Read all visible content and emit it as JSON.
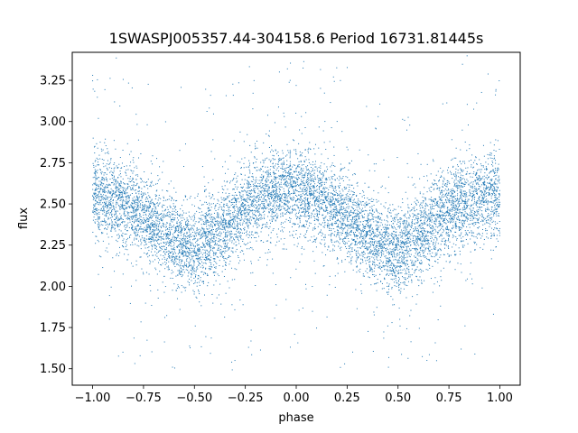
{
  "chart_data": {
    "type": "scatter",
    "title": "1SWASPJ005357.44-304158.6 Period 16731.81445s",
    "xlabel": "phase",
    "ylabel": "flux",
    "xlim": [
      -1.1,
      1.1
    ],
    "ylim": [
      1.4,
      3.42
    ],
    "x_ticks": [
      -1.0,
      -0.75,
      -0.5,
      -0.25,
      0.0,
      0.25,
      0.5,
      0.75,
      1.0
    ],
    "x_tick_labels": [
      "−1.00",
      "−0.75",
      "−0.50",
      "−0.25",
      "0.00",
      "0.25",
      "0.50",
      "0.75",
      "1.00"
    ],
    "y_ticks": [
      1.5,
      1.75,
      2.0,
      2.25,
      2.5,
      2.75,
      3.0,
      3.25
    ],
    "y_tick_labels": [
      "1.50",
      "1.75",
      "2.00",
      "2.25",
      "2.50",
      "2.75",
      "3.00",
      "3.25"
    ],
    "grid": false,
    "marker_color": "#1f77b4",
    "series": [
      {
        "x": [
          -1.0,
          -0.9,
          -0.8,
          -0.7,
          -0.6,
          -0.5,
          -0.4,
          -0.3,
          -0.2,
          -0.1,
          0.0,
          0.1,
          0.2,
          0.3,
          0.4,
          0.5,
          0.6,
          0.7,
          0.8,
          0.9,
          1.0
        ],
        "y": [
          2.55,
          2.52,
          2.47,
          2.38,
          2.28,
          2.22,
          2.3,
          2.42,
          2.52,
          2.57,
          2.58,
          2.54,
          2.46,
          2.36,
          2.26,
          2.22,
          2.3,
          2.42,
          2.5,
          2.54,
          2.56
        ]
      }
    ]
  }
}
